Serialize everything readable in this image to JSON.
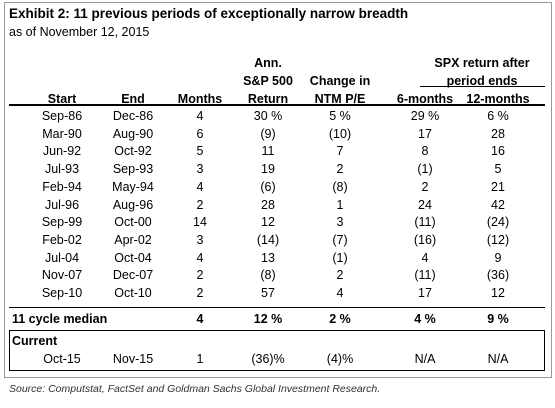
{
  "header": {
    "title": "Exhibit 2: 11 previous periods of exceptionally narrow breadth",
    "subtitle": "as of November 12, 2015"
  },
  "table": {
    "group_header": [
      "SPX return after",
      "period ends"
    ],
    "columns": [
      [
        "Start"
      ],
      [
        "End"
      ],
      [
        "Months"
      ],
      [
        "Ann.",
        "S&P 500",
        "Return"
      ],
      [
        "Change in",
        "NTM P/E"
      ],
      [
        "6-months"
      ],
      [
        "12-months"
      ]
    ],
    "rows": [
      [
        "Sep-86",
        "Dec-86",
        "4",
        "30 %",
        "5 %",
        "29 %",
        "6 %"
      ],
      [
        "Mar-90",
        "Aug-90",
        "6",
        "(9)",
        "(10)",
        "17",
        "28"
      ],
      [
        "Jun-92",
        "Oct-92",
        "5",
        "11",
        "7",
        "8",
        "16"
      ],
      [
        "Jul-93",
        "Sep-93",
        "3",
        "19",
        "2",
        "(1)",
        "5"
      ],
      [
        "Feb-94",
        "May-94",
        "4",
        "(6)",
        "(8)",
        "2",
        "21"
      ],
      [
        "Jul-96",
        "Aug-96",
        "2",
        "28",
        "1",
        "24",
        "42"
      ],
      [
        "Sep-99",
        "Oct-00",
        "14",
        "12",
        "3",
        "(11)",
        "(24)"
      ],
      [
        "Feb-02",
        "Apr-02",
        "3",
        "(14)",
        "(7)",
        "(16)",
        "(12)"
      ],
      [
        "Jul-04",
        "Oct-04",
        "4",
        "13",
        "(1)",
        "4",
        "9"
      ],
      [
        "Nov-07",
        "Dec-07",
        "2",
        "(8)",
        "2",
        "(11)",
        "(36)"
      ],
      [
        "Sep-10",
        "Oct-10",
        "2",
        "57",
        "4",
        "17",
        "12"
      ]
    ],
    "median": [
      "11 cycle median",
      "4",
      "12 %",
      "2 %",
      "4 %",
      "9 %"
    ],
    "current": {
      "label": "Current",
      "rows": [
        [
          "Oct-15",
          "Nov-15",
          "1",
          "(36)%",
          "(4)%",
          "N/A",
          "N/A"
        ]
      ]
    }
  },
  "source": "Source: Computstat, FactSet and Goldman Sachs Global Investment Research."
}
